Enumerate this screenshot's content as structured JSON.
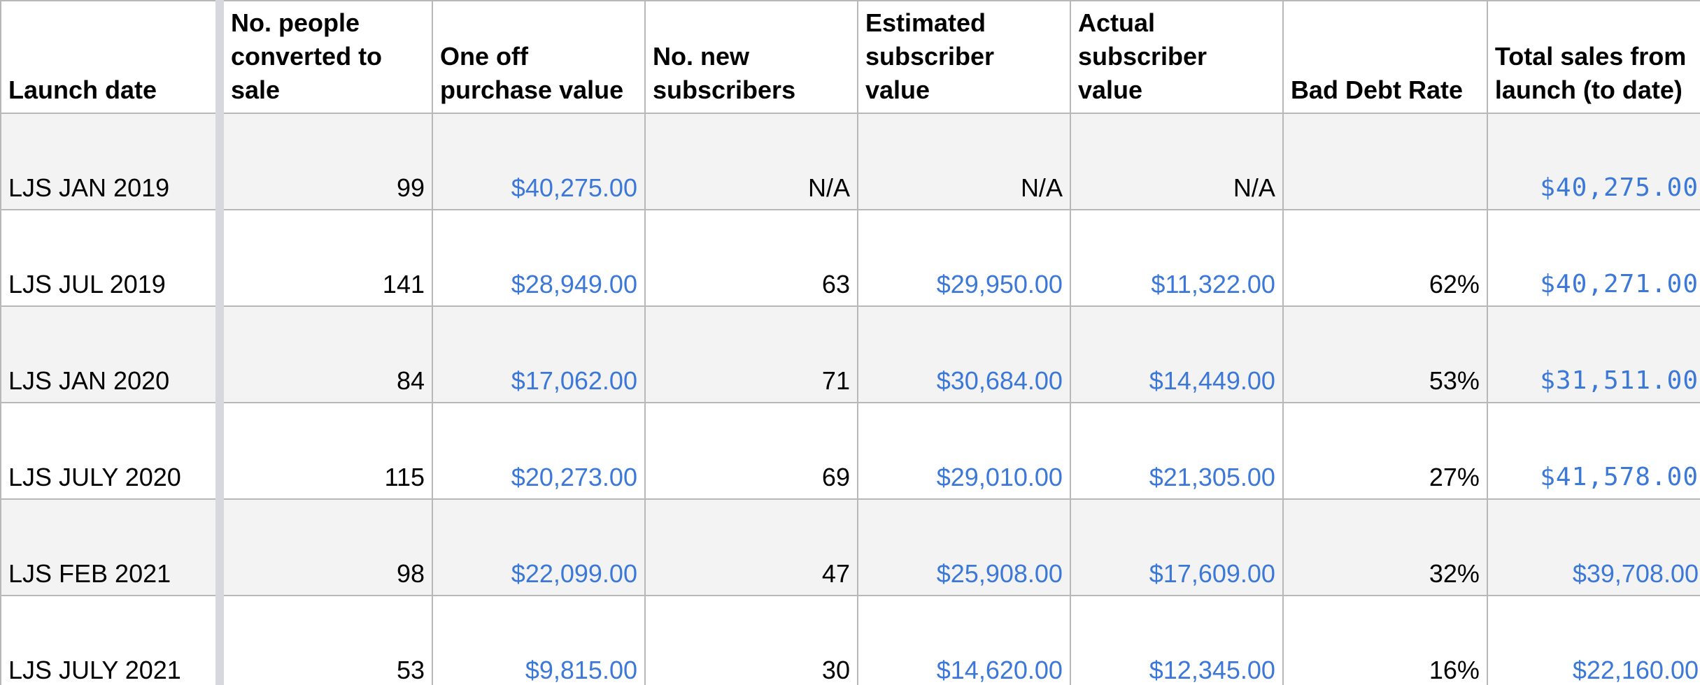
{
  "table": {
    "headers": {
      "launch_date": "Launch date",
      "people_converted": "No. people converted to sale",
      "one_off_value": "One off purchase value",
      "new_subscribers": "No. new subscribers",
      "estimated_value": "Estimated subscriber value",
      "actual_value": "Actual subscriber value",
      "bad_debt_rate": "Bad Debt Rate",
      "total_sales": "Total sales from launch (to date)"
    },
    "rows": [
      {
        "launch_date": "LJS JAN 2019",
        "people_converted": "99",
        "one_off_value": "$40,275.00",
        "new_subscribers": "N/A",
        "estimated_value": "N/A",
        "actual_value": "N/A",
        "bad_debt_rate": "",
        "total_sales": "$40,275.00"
      },
      {
        "launch_date": "LJS JUL 2019",
        "people_converted": "141",
        "one_off_value": "$28,949.00",
        "new_subscribers": "63",
        "estimated_value": "$29,950.00",
        "actual_value": "$11,322.00",
        "bad_debt_rate": "62%",
        "total_sales": "$40,271.00"
      },
      {
        "launch_date": "LJS JAN 2020",
        "people_converted": "84",
        "one_off_value": "$17,062.00",
        "new_subscribers": "71",
        "estimated_value": "$30,684.00",
        "actual_value": "$14,449.00",
        "bad_debt_rate": "53%",
        "total_sales": "$31,511.00"
      },
      {
        "launch_date": "LJS JULY 2020",
        "people_converted": "115",
        "one_off_value": "$20,273.00",
        "new_subscribers": "69",
        "estimated_value": "$29,010.00",
        "actual_value": "$21,305.00",
        "bad_debt_rate": "27%",
        "total_sales": "$41,578.00"
      },
      {
        "launch_date": "LJS FEB 2021",
        "people_converted": "98",
        "one_off_value": "$22,099.00",
        "new_subscribers": "47",
        "estimated_value": "$25,908.00",
        "actual_value": "$17,609.00",
        "bad_debt_rate": "32%",
        "total_sales": "$39,708.00"
      },
      {
        "launch_date": "LJS JULY 2021",
        "people_converted": "53",
        "one_off_value": "$9,815.00",
        "new_subscribers": "30",
        "estimated_value": "$14,620.00",
        "actual_value": "$12,345.00",
        "bad_debt_rate": "16%",
        "total_sales": "$22,160.00"
      }
    ]
  },
  "colors": {
    "money_text": "#3c78d8",
    "shaded_row": "#f3f3f3",
    "grid_line": "#b8b8b8",
    "freeze_divider": "#d6d8de"
  }
}
